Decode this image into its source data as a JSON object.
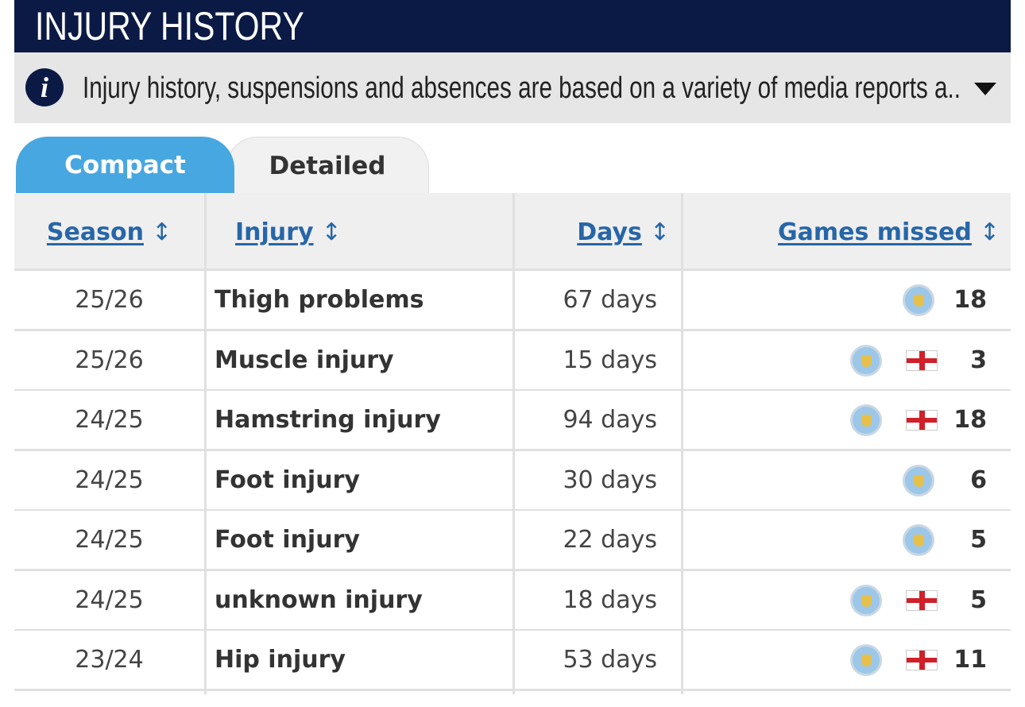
{
  "header": {
    "title": "INJURY HISTORY"
  },
  "info": {
    "text": "Injury history, suspensions and absences are based on a variety of media reports a.."
  },
  "tabs": [
    "Compact",
    "Detailed"
  ],
  "table": {
    "columns": [
      "Season",
      "Injury",
      "Days",
      "Games missed"
    ],
    "rows": [
      [
        "25/26",
        "Thigh problems",
        "67 days",
        18
      ],
      [
        "25/26",
        "Muscle injury",
        "15 days",
        3
      ],
      [
        "24/25",
        "Hamstring injury",
        "94 days",
        18
      ],
      [
        "24/25",
        "Foot injury",
        "30 days",
        6
      ],
      [
        "24/25",
        "Foot injury",
        "22 days",
        5
      ],
      [
        "24/25",
        "unknown injury",
        "18 days",
        5
      ],
      [
        "23/24",
        "Hip injury",
        "53 days",
        11
      ]
    ]
  }
}
